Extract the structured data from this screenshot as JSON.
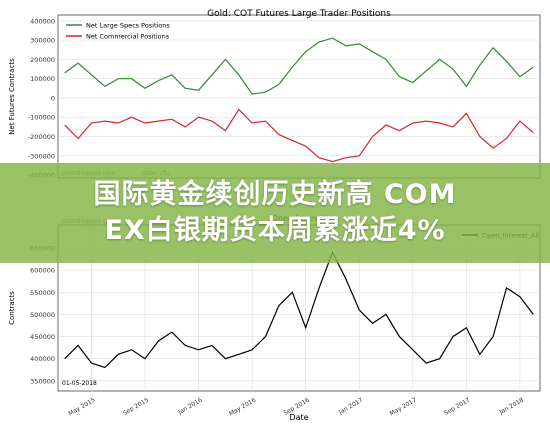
{
  "chart_data": [
    {
      "type": "line",
      "title": "Gold: COT Futures Large Trader Positions",
      "ylabel": "Net Futures Contracts",
      "source_notes": [
        "countingpips.com",
        "data: cftc"
      ],
      "x": [
        2,
        3,
        4,
        5,
        6,
        7,
        8,
        9,
        10,
        11,
        12,
        13,
        14,
        15,
        16,
        17,
        18,
        19,
        20,
        21,
        22,
        23,
        24,
        25,
        26,
        27,
        28,
        29,
        30,
        31,
        32,
        33,
        34,
        35,
        36,
        37
      ],
      "xlim": [
        1.5,
        37.5
      ],
      "ylim": [
        -415000,
        430000
      ],
      "yticks": [
        -400000,
        -300000,
        -200000,
        -100000,
        0,
        100000,
        200000,
        300000,
        400000
      ],
      "grid": true,
      "legend": "upper left",
      "series": [
        {
          "name": "Net Large Specs Positions",
          "color": "#2e8b2e",
          "values": [
            130000,
            180000,
            120000,
            60000,
            100000,
            100000,
            50000,
            90000,
            120000,
            50000,
            40000,
            120000,
            200000,
            120000,
            20000,
            30000,
            70000,
            160000,
            240000,
            290000,
            310000,
            270000,
            280000,
            240000,
            200000,
            110000,
            80000,
            140000,
            200000,
            150000,
            60000,
            170000,
            260000,
            190000,
            110000,
            160000
          ]
        },
        {
          "name": "Net Commercial Positions",
          "color": "#d62728",
          "values": [
            -140000,
            -210000,
            -130000,
            -120000,
            -130000,
            -100000,
            -130000,
            -120000,
            -110000,
            -150000,
            -100000,
            -120000,
            -170000,
            -60000,
            -130000,
            -120000,
            -190000,
            -220000,
            -250000,
            -310000,
            -330000,
            -310000,
            -300000,
            -200000,
            -140000,
            -170000,
            -130000,
            -120000,
            -130000,
            -150000,
            -80000,
            -200000,
            -260000,
            -210000,
            -120000,
            -180000
          ]
        }
      ]
    },
    {
      "type": "line",
      "title": "Open Interest",
      "ylabel": "Contracts",
      "xlabel": "Date",
      "source_notes": [
        "countingpips.com"
      ],
      "date_note": "01-05-2018",
      "x": [
        2,
        3,
        4,
        5,
        6,
        7,
        8,
        9,
        10,
        11,
        12,
        13,
        14,
        15,
        16,
        17,
        18,
        19,
        20,
        21,
        22,
        23,
        24,
        25,
        26,
        27,
        28,
        29,
        30,
        31,
        32,
        33,
        34,
        35,
        36,
        37
      ],
      "xlim": [
        1.5,
        37.5
      ],
      "ylim": [
        327000,
        702000
      ],
      "yticks": [
        350000,
        400000,
        450000,
        500000,
        550000,
        600000,
        650000
      ],
      "xticks": [
        {
          "value": 4,
          "label": "May 2015"
        },
        {
          "value": 8,
          "label": "Sep 2015"
        },
        {
          "value": 12,
          "label": "Jan 2016"
        },
        {
          "value": 16,
          "label": "May 2016"
        },
        {
          "value": 20,
          "label": "Sep 2016"
        },
        {
          "value": 24,
          "label": "Jan 2017"
        },
        {
          "value": 28,
          "label": "May 2017"
        },
        {
          "value": 32,
          "label": "Sep 2017"
        },
        {
          "value": 36,
          "label": "Jan 2018"
        }
      ],
      "grid": true,
      "legend": "upper right",
      "series": [
        {
          "name": "Open_Interest_All",
          "color": "#000000",
          "values": [
            400000,
            430000,
            390000,
            380000,
            410000,
            420000,
            400000,
            440000,
            460000,
            430000,
            420000,
            430000,
            400000,
            410000,
            420000,
            450000,
            520000,
            550000,
            470000,
            560000,
            640000,
            580000,
            510000,
            480000,
            500000,
            450000,
            420000,
            390000,
            400000,
            450000,
            470000,
            410000,
            450000,
            560000,
            540000,
            500000
          ]
        }
      ]
    }
  ],
  "overlay_title": [
    "国际黄金续创历史新高 COM",
    "EX白银期货本周累涨近4%"
  ]
}
